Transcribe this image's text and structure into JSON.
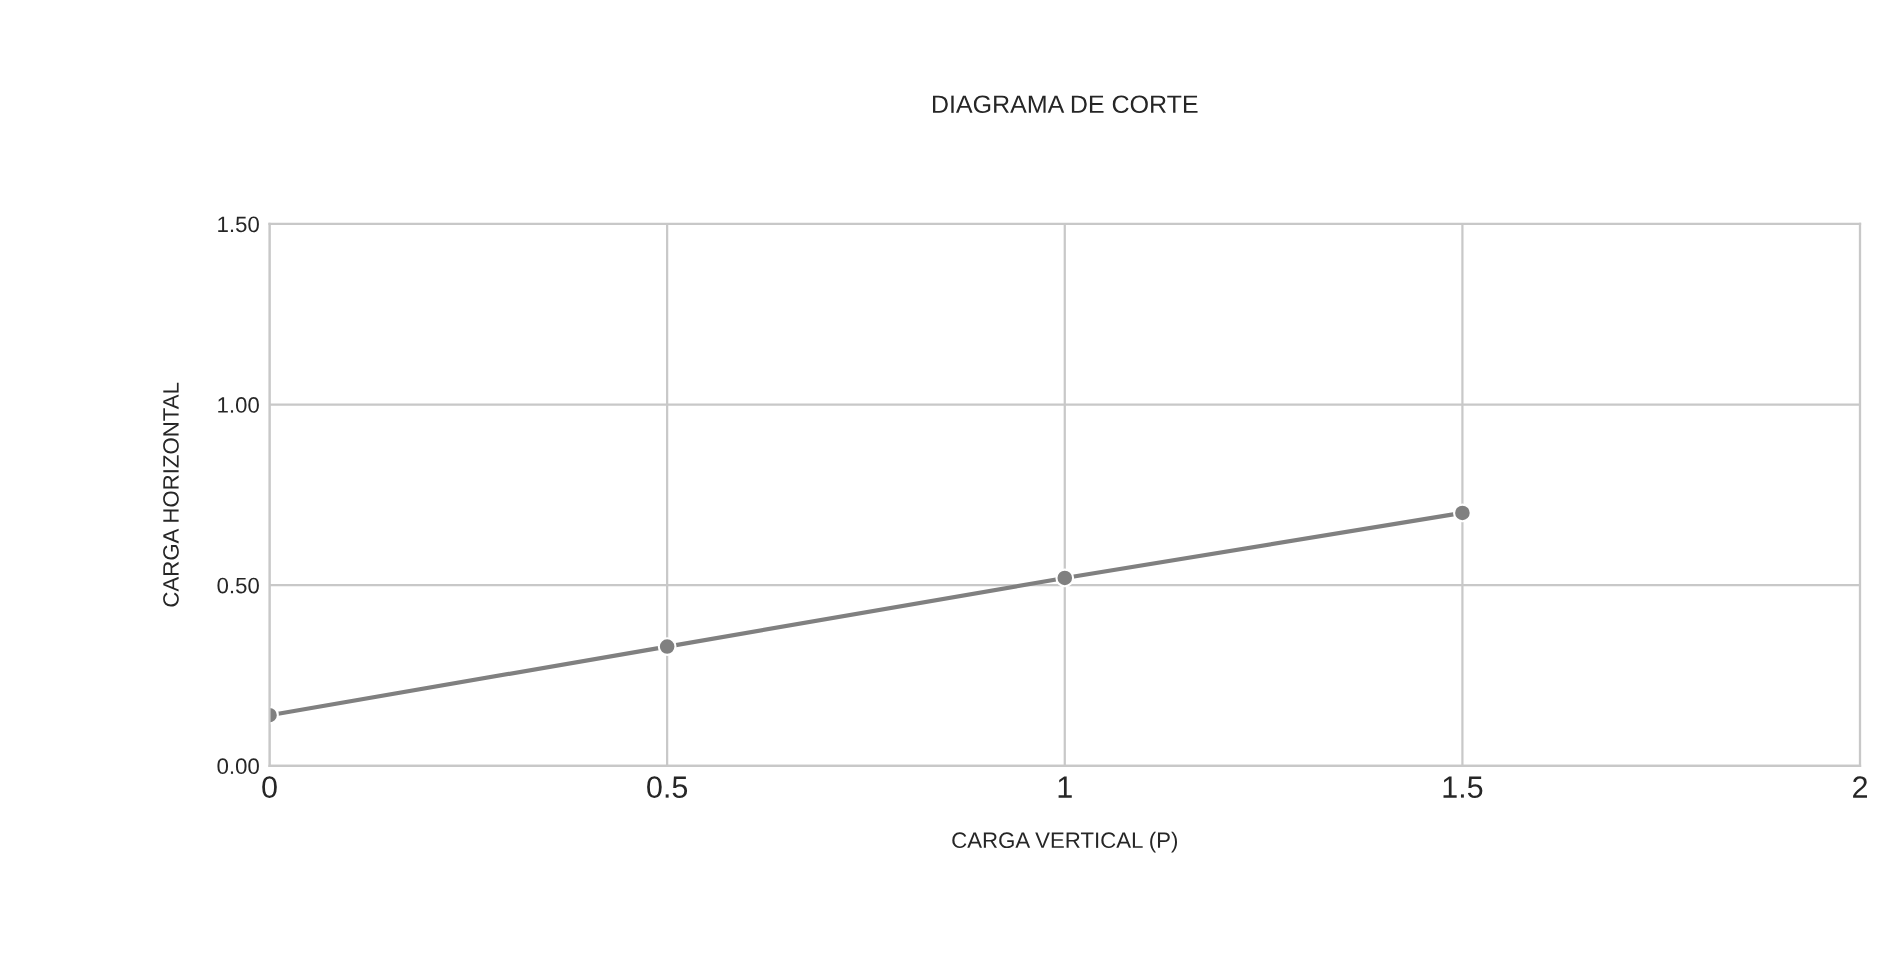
{
  "chart_data": {
    "type": "line",
    "title": "DIAGRAMA DE CORTE",
    "xlabel": "CARGA VERTICAL (P)",
    "ylabel": "CARGA HORIZONTAL",
    "x": [
      0,
      0.5,
      1,
      1.5
    ],
    "series": [
      {
        "color": "#808080",
        "values": [
          0.14,
          0.33,
          0.52,
          0.7
        ]
      }
    ],
    "xlim": [
      0,
      2
    ],
    "xticks": [
      0,
      0.5,
      1,
      1.5,
      2
    ],
    "ylim": [
      0,
      1.5
    ],
    "yticks": [
      {
        "value": 0,
        "label": "0.00"
      },
      {
        "value": 0.5,
        "label": "0.50"
      },
      {
        "value": 1,
        "label": "1.00"
      },
      {
        "value": 1.5,
        "label": "1.50"
      }
    ],
    "grid": true,
    "marker": "circle",
    "line_style": "solid",
    "legend": false
  }
}
